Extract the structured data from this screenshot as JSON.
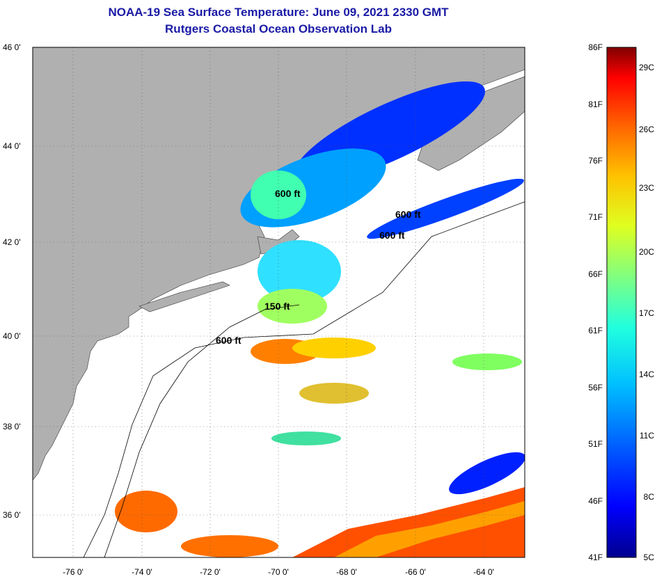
{
  "title": {
    "line1": "NOAA-19 Sea Surface Temperature:  June 09, 2021 2330 GMT",
    "line2": "Rutgers Coastal Ocean Observation Lab"
  },
  "map": {
    "lat_labels": [
      "46 0'",
      "44 0'",
      "42 0'",
      "40 0'",
      "38 0'",
      "36 0'"
    ],
    "lon_labels": [
      "-76 0'",
      "-74 0'",
      "-72 0'",
      "-70 0'",
      "-68 0'",
      "-66 0'",
      "-64 0'"
    ],
    "lat_range": [
      35,
      46
    ],
    "lon_range": [
      -77,
      -63
    ],
    "isobath_labels": [
      "600 ft",
      "600 ft",
      "600 ft",
      "150 ft",
      "600 ft"
    ],
    "colors": {
      "land": "#b0b0b0",
      "ocean_no_data": "#ffffff"
    }
  },
  "colorbar": {
    "f_labels": [
      "86F",
      "81F",
      "76F",
      "71F",
      "66F",
      "61F",
      "56F",
      "51F",
      "46F",
      "41F"
    ],
    "c_labels": [
      "29C",
      "26C",
      "23C",
      "20C",
      "17C",
      "14C",
      "11C",
      "8C",
      "5C"
    ],
    "colors": [
      "#00008f",
      "#0000ff",
      "#0060ff",
      "#00c0ff",
      "#20ffdf",
      "#80ff80",
      "#dfff20",
      "#ffc000",
      "#ff6000",
      "#ff0000",
      "#800000"
    ]
  }
}
